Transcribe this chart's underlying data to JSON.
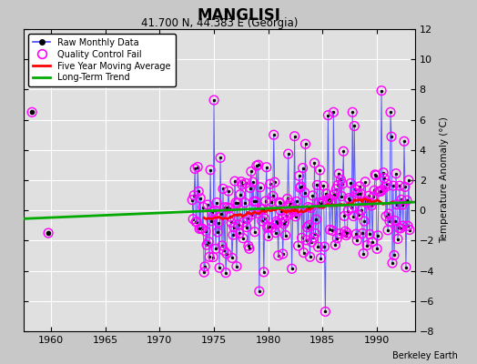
{
  "title": "MANGLISI",
  "subtitle": "41.700 N, 44.383 E (Georgia)",
  "ylabel": "Temperature Anomaly (°C)",
  "credit": "Berkeley Earth",
  "xlim": [
    1957.5,
    1993.5
  ],
  "ylim": [
    -8,
    12
  ],
  "yticks": [
    -8,
    -6,
    -4,
    -2,
    0,
    2,
    4,
    6,
    8,
    10,
    12
  ],
  "xticks": [
    1960,
    1965,
    1970,
    1975,
    1980,
    1985,
    1990
  ],
  "bg_color": "#e0e0e0",
  "outer_bg": "#c8c8c8",
  "raw_color": "#4444ff",
  "qc_color": "#ff00ff",
  "ma_color": "#ff0000",
  "trend_color": "#00aa00",
  "isolated_points": [
    [
      1958.25,
      6.5
    ],
    [
      1959.75,
      -1.5
    ]
  ],
  "trend_x": [
    1957.5,
    1993.5
  ],
  "trend_y": [
    -0.55,
    0.55
  ],
  "ma_start": 1974.0,
  "ma_end": 1991.5,
  "seed": 42,
  "data_start": 1973.0,
  "data_end": 1993.0
}
